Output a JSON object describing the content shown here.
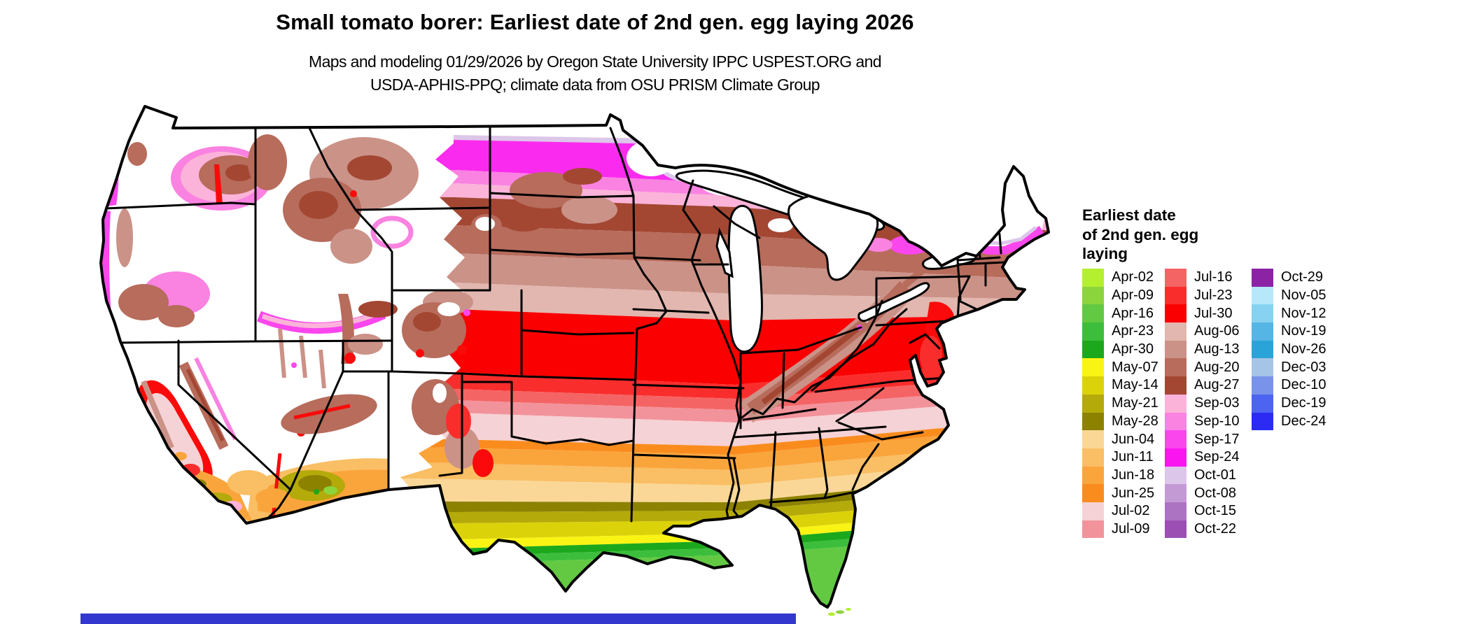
{
  "title": "Small tomato borer: Earliest date of 2nd gen. egg laying 2026",
  "subtitle_line1": "Maps and modeling 01/29/2026 by Oregon State University IPPC USPEST.ORG and",
  "subtitle_line2": "USDA-APHIS-PPQ; climate data from OSU PRISM Climate Group",
  "legend": {
    "title_lines": [
      "Earliest date",
      "of 2nd gen. egg",
      "laying"
    ],
    "columns": [
      [
        {
          "label": "Apr-02",
          "color": "#B4EF30"
        },
        {
          "label": "Apr-09",
          "color": "#8CD43C"
        },
        {
          "label": "Apr-16",
          "color": "#63C943"
        },
        {
          "label": "Apr-23",
          "color": "#3CBE3C"
        },
        {
          "label": "Apr-30",
          "color": "#1CA81C"
        },
        {
          "label": "May-07",
          "color": "#FAF414"
        },
        {
          "label": "May-14",
          "color": "#DCD20A"
        },
        {
          "label": "May-21",
          "color": "#B4AA0A"
        },
        {
          "label": "May-28",
          "color": "#8C8200"
        },
        {
          "label": "Jun-04",
          "color": "#FAD796"
        },
        {
          "label": "Jun-11",
          "color": "#FABE64"
        },
        {
          "label": "Jun-18",
          "color": "#FAA53C"
        },
        {
          "label": "Jun-25",
          "color": "#FA8C1E"
        },
        {
          "label": "Jul-02",
          "color": "#F5D2D5"
        },
        {
          "label": "Jul-09",
          "color": "#F2939B"
        }
      ],
      [
        {
          "label": "Jul-16",
          "color": "#F56464"
        },
        {
          "label": "Jul-23",
          "color": "#FA2D2D"
        },
        {
          "label": "Jul-30",
          "color": "#FA0000"
        },
        {
          "label": "Aug-06",
          "color": "#E1B7AF"
        },
        {
          "label": "Aug-13",
          "color": "#CB9288"
        },
        {
          "label": "Aug-20",
          "color": "#B76C5C"
        },
        {
          "label": "Aug-27",
          "color": "#A34733"
        },
        {
          "label": "Sep-03",
          "color": "#FCB3D9"
        },
        {
          "label": "Sep-10",
          "color": "#FA82E1"
        },
        {
          "label": "Sep-17",
          "color": "#FA46ED"
        },
        {
          "label": "Sep-24",
          "color": "#FA14F0"
        },
        {
          "label": "Oct-01",
          "color": "#DCC6E9"
        },
        {
          "label": "Oct-08",
          "color": "#C49AD5"
        },
        {
          "label": "Oct-15",
          "color": "#AC73C3"
        },
        {
          "label": "Oct-22",
          "color": "#9C4FB3"
        }
      ],
      [
        {
          "label": "Oct-29",
          "color": "#8C23A5"
        },
        {
          "label": "Nov-05",
          "color": "#B6E8FA"
        },
        {
          "label": "Nov-12",
          "color": "#86D2F0"
        },
        {
          "label": "Nov-19",
          "color": "#55B5E4"
        },
        {
          "label": "Nov-26",
          "color": "#2AA4D8"
        },
        {
          "label": "Dec-03",
          "color": "#A6C4E6"
        },
        {
          "label": "Dec-10",
          "color": "#7A93EA"
        },
        {
          "label": "Dec-19",
          "color": "#4C64F0"
        },
        {
          "label": "Dec-24",
          "color": "#2B2BF4"
        }
      ]
    ]
  },
  "map": {
    "region": "Continental United States",
    "no_data_color": "#FFFFFF",
    "bottom_bar_color": "#3437CE"
  }
}
